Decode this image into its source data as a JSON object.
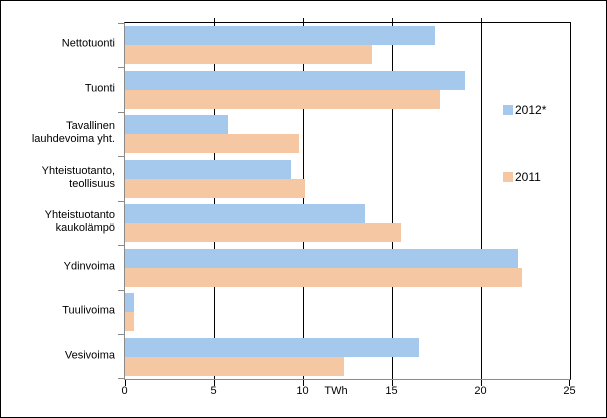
{
  "figure": {
    "background": "#FFFFFF",
    "border_color": "#000000"
  },
  "chart_data": {
    "type": "bar",
    "orientation": "horizontal",
    "title": "",
    "xlabel": "TWh",
    "ylabel": "",
    "categories": [
      "Nettotuonti",
      "Tuonti",
      "Tavallinen\nlauhdevoima yht.",
      "Yhteistuotanto,\nteollisuus",
      "Yhteistuotanto\nkaukolämpö",
      "Ydinvoima",
      "Tuulivoima",
      "Vesivoima"
    ],
    "series": [
      {
        "name": "2012*",
        "color": "#A5C9ED",
        "values": [
          17.4,
          19.1,
          5.8,
          9.3,
          13.5,
          22.1,
          0.5,
          16.5
        ]
      },
      {
        "name": "2011",
        "color": "#F6C7A3",
        "values": [
          13.9,
          17.7,
          9.8,
          10.1,
          15.5,
          22.3,
          0.5,
          12.3
        ]
      }
    ],
    "xlim": [
      0,
      25
    ],
    "x_ticks": [
      0,
      5,
      10,
      15,
      20,
      25
    ],
    "grid": true,
    "legend_position": "inside-right",
    "colors": {
      "gridline": "#000000",
      "category_axis": "#8a8a8a",
      "tick": "#000000",
      "text": "#000000"
    }
  }
}
